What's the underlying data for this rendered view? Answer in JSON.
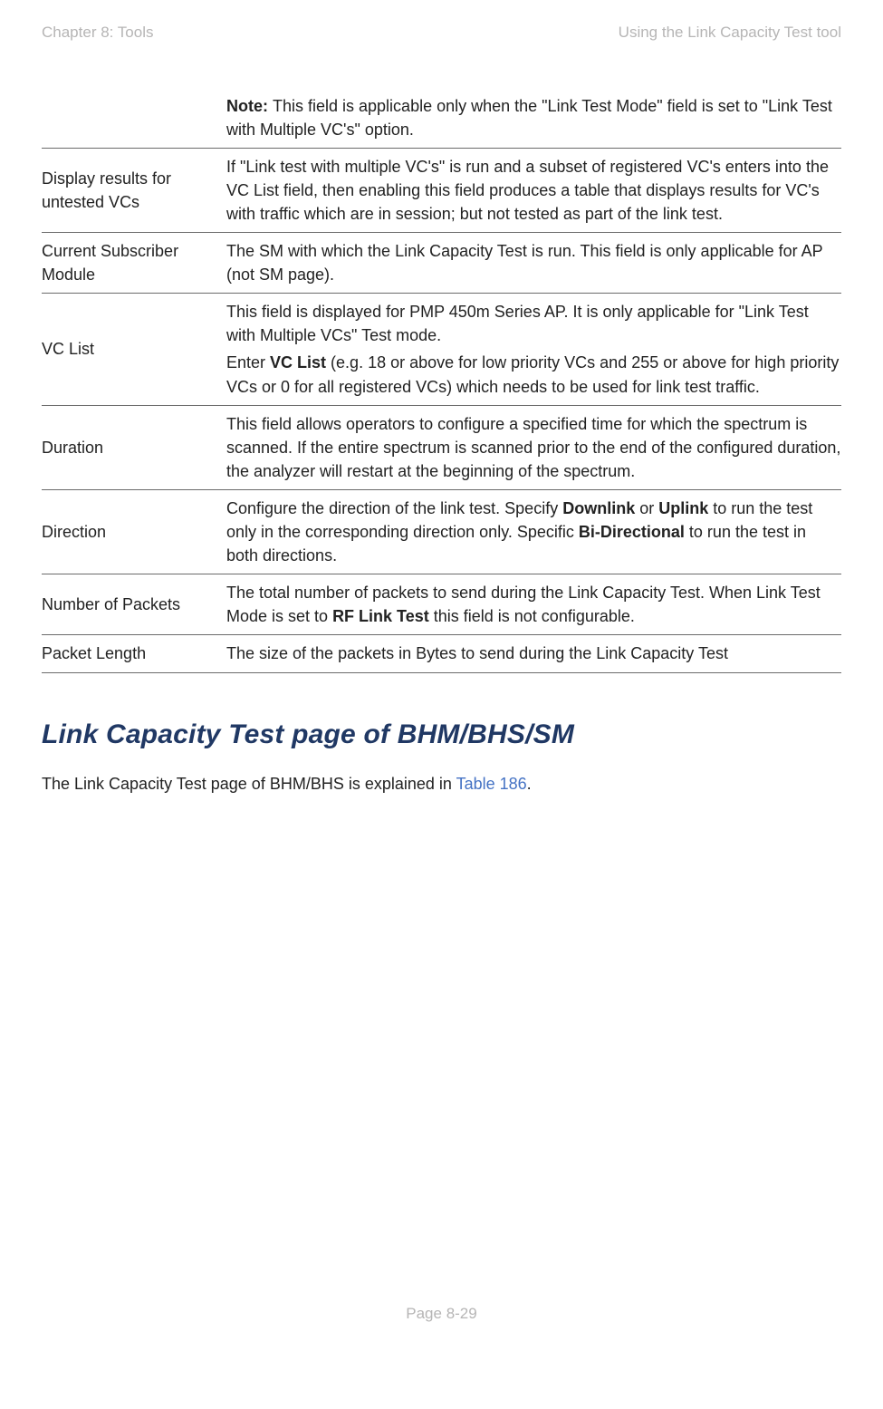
{
  "header": {
    "left": "Chapter 8:  Tools",
    "right": "Using the Link Capacity Test tool"
  },
  "table": {
    "rows": [
      {
        "attribute": "",
        "description_parts": [
          {
            "bold": "Note: "
          },
          {
            "text": "This field is applicable only when the \"Link Test Mode\" field is set to \"Link Test with Multiple VC's\" option."
          }
        ]
      },
      {
        "attribute": "Display results for untested VCs",
        "description_parts": [
          {
            "text": "If \"Link test with multiple VC's\"  is run and a subset of registered VC's enters into the VC List field,  then enabling this field produces a table that displays results for VC's with traffic which are in session; but not tested as part of the link test."
          }
        ]
      },
      {
        "attribute": "Current Subscriber Module",
        "description_parts": [
          {
            "text": "The SM with which the Link Capacity Test is run. This field is only applicable for AP (not SM page)."
          }
        ]
      },
      {
        "attribute": "VC List",
        "description_parts": [
          {
            "text": "This field is displayed for PMP 450m Series AP. It is only applicable for \"Link Test with Multiple VCs\" Test mode."
          },
          {
            "break": true
          },
          {
            "text": "Enter "
          },
          {
            "bold": "VC List"
          },
          {
            "text": " (e.g. 18 or above for low priority VCs and 255 or above for high priority VCs or 0 for all registered VCs) which needs to be used for link test traffic."
          }
        ]
      },
      {
        "attribute": "Duration",
        "description_parts": [
          {
            "text": "This field allows operators to configure a specified time for which the spectrum is scanned. If the entire spectrum is scanned prior to the end of the configured duration, the analyzer will restart at the beginning of the spectrum."
          }
        ]
      },
      {
        "attribute": "Direction",
        "description_parts": [
          {
            "text": "Configure the direction of the link test. Specify "
          },
          {
            "bold": "Downlink"
          },
          {
            "text": " or "
          },
          {
            "bold": "Uplink"
          },
          {
            "text": " to run the test only in the corresponding direction only. Specific "
          },
          {
            "bold": "Bi-Directional"
          },
          {
            "text": " to run the test in both directions."
          }
        ]
      },
      {
        "attribute": "Number of Packets",
        "description_parts": [
          {
            "text": "The total number of packets to send during the Link Capacity Test. When Link Test Mode is set to "
          },
          {
            "bold": "RF Link Test"
          },
          {
            "text": " this field is not configurable."
          }
        ]
      },
      {
        "attribute": "Packet Length",
        "description_parts": [
          {
            "text": "The size of the packets in Bytes to send during the Link Capacity Test"
          }
        ]
      }
    ]
  },
  "section": {
    "title": "Link Capacity Test page of BHM/BHS/SM",
    "body_prefix": "The Link Capacity Test page of BHM/BHS is explained in ",
    "body_link": "Table 186",
    "body_suffix": "."
  },
  "footer": {
    "text": "Page 8-29"
  }
}
